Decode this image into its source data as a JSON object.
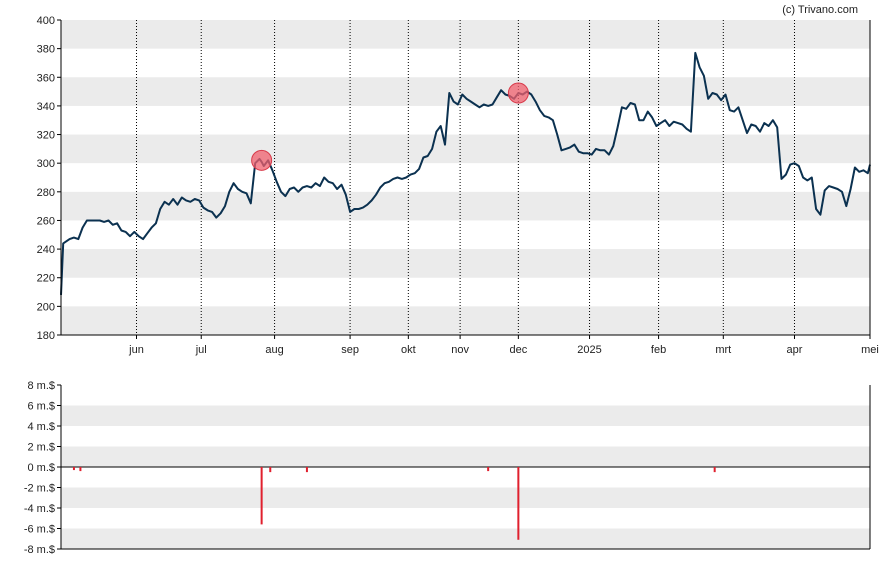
{
  "copyright": "(c) Trivano.com",
  "colors": {
    "price_line": "#0b3150",
    "marker": "#f0606e",
    "volume_bar": "#e0202e",
    "band": "#ebebeb",
    "axis": "#000000",
    "grid": "#000000"
  },
  "chart_data": [
    {
      "type": "line",
      "title": "",
      "xlabel": "",
      "ylabel": "",
      "ylim": [
        180,
        400
      ],
      "yticks": [
        180,
        200,
        220,
        240,
        260,
        280,
        300,
        320,
        340,
        360,
        380,
        400
      ],
      "x_tick_labels": [
        "jun",
        "jul",
        "aug",
        "sep",
        "okt",
        "nov",
        "dec",
        "2025",
        "feb",
        "mrt",
        "apr",
        "mei"
      ],
      "x_range_days": [
        0,
        375
      ],
      "x_tick_days": [
        35,
        65,
        99,
        134,
        161,
        185,
        212,
        245,
        277,
        307,
        340,
        375
      ],
      "grid": "vertical dotted at month ticks, alternating horizontal bands",
      "series": [
        {
          "x": [
            0,
            1,
            4,
            6,
            8,
            10,
            12,
            15,
            18,
            20,
            22,
            24,
            26,
            28,
            30,
            32,
            34,
            36,
            38,
            40,
            42,
            44,
            46,
            48,
            50,
            52,
            54,
            56,
            58,
            60,
            62,
            64,
            66,
            68,
            70,
            72,
            74,
            76,
            78,
            80,
            82,
            84,
            86,
            88,
            90,
            92,
            93,
            94,
            96,
            98,
            100,
            102,
            104,
            106,
            108,
            110,
            112,
            114,
            116,
            118,
            120,
            122,
            124,
            126,
            128,
            130,
            132,
            134,
            136,
            138,
            140,
            142,
            144,
            146,
            148,
            150,
            152,
            154,
            156,
            158,
            160,
            162,
            164,
            166,
            168,
            170,
            172,
            174,
            176,
            178,
            180,
            182,
            184,
            186,
            188,
            190,
            192,
            194,
            196,
            198,
            200,
            202,
            204,
            206,
            208,
            210,
            212,
            214,
            216,
            218,
            220,
            222,
            224,
            226,
            228,
            230,
            232,
            234,
            236,
            238,
            240,
            242,
            244,
            246,
            248,
            250,
            252,
            254,
            256,
            258,
            260,
            262,
            264,
            266,
            268,
            270,
            272,
            274,
            276,
            278,
            280,
            282,
            284,
            286,
            288,
            290,
            292,
            294,
            296,
            298,
            300,
            302,
            304,
            306,
            308,
            310,
            312,
            314,
            316,
            318,
            320,
            322,
            324,
            326,
            328,
            330,
            332,
            334,
            336,
            338,
            340,
            342,
            344,
            346,
            348,
            350,
            352,
            354,
            356,
            358,
            360,
            362,
            364,
            366,
            368,
            370,
            372,
            374,
            375
          ],
          "y": [
            208,
            244,
            247,
            248,
            247,
            255,
            260,
            260,
            260,
            259,
            260,
            257,
            258,
            253,
            252,
            249,
            252,
            249,
            247,
            251,
            255,
            258,
            268,
            273,
            271,
            275,
            271,
            276,
            274,
            273,
            275,
            274,
            269,
            267,
            266,
            262,
            265,
            270,
            280,
            286,
            282,
            280,
            279,
            272,
            300,
            303,
            301,
            298,
            302,
            295,
            287,
            280,
            277,
            282,
            283,
            280,
            283,
            284,
            283,
            286,
            284,
            290,
            287,
            286,
            282,
            285,
            278,
            266,
            268,
            268,
            269,
            271,
            274,
            278,
            283,
            286,
            287,
            289,
            290,
            289,
            290,
            292,
            293,
            296,
            304,
            305,
            310,
            322,
            326,
            313,
            349,
            343,
            341,
            348,
            345,
            343,
            341,
            339,
            341,
            340,
            341,
            346,
            351,
            348,
            347,
            345,
            349,
            348,
            350,
            348,
            343,
            337,
            333,
            332,
            330,
            320,
            309,
            310,
            311,
            313,
            308,
            307,
            307,
            306,
            310,
            309,
            309,
            306,
            312,
            325,
            339,
            338,
            342,
            341,
            330,
            330,
            336,
            332,
            326,
            328,
            330,
            326,
            329,
            328,
            327,
            324,
            322,
            377,
            367,
            361,
            345,
            349,
            348,
            344,
            348,
            337,
            336,
            339,
            330,
            321,
            327,
            326,
            322,
            328,
            326,
            330,
            325,
            289,
            292,
            299,
            300,
            298,
            290,
            288,
            290,
            268,
            264,
            281,
            284,
            283,
            282,
            280,
            270,
            282,
            297,
            294,
            295,
            293,
            299
          ]
        }
      ],
      "markers": [
        {
          "x": 93,
          "y": 302
        },
        {
          "x": 212,
          "y": 349
        }
      ]
    },
    {
      "type": "bar",
      "title": "",
      "xlabel": "",
      "ylabel": "",
      "ylim": [
        -8,
        8
      ],
      "y_tick_labels": [
        "8 m.$",
        "6 m.$",
        "4 m.$",
        "2 m.$",
        "0 m.$",
        "-2 m.$",
        "-4 m.$",
        "-6 m.$",
        "-8 m.$"
      ],
      "y_tick_values": [
        8,
        6,
        4,
        2,
        0,
        -2,
        -4,
        -6,
        -8
      ],
      "unit": "m.$",
      "bars": [
        {
          "x": 6,
          "value": -0.3
        },
        {
          "x": 9,
          "value": -0.4
        },
        {
          "x": 93,
          "value": -5.6
        },
        {
          "x": 97,
          "value": -0.5
        },
        {
          "x": 114,
          "value": -0.5
        },
        {
          "x": 198,
          "value": -0.4
        },
        {
          "x": 212,
          "value": -7.1
        },
        {
          "x": 303,
          "value": -0.5
        }
      ]
    }
  ]
}
